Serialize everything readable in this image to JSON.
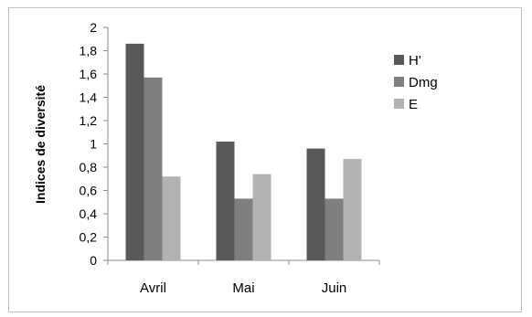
{
  "chart_data": {
    "type": "bar",
    "title": "",
    "xlabel": "",
    "ylabel": "Indices de diversité",
    "ylim": [
      0,
      2
    ],
    "ytick_step": 0.2,
    "yticks": [
      "0",
      "0,2",
      "0,4",
      "0,6",
      "0,8",
      "1",
      "1,2",
      "1,4",
      "1,6",
      "1,8",
      "2"
    ],
    "grid": false,
    "legend_position": "right",
    "categories": [
      "Avril",
      "Mai",
      "Juin"
    ],
    "series": [
      {
        "name": "H'",
        "color": "#595959",
        "values": [
          1.86,
          1.02,
          0.96
        ]
      },
      {
        "name": "Dmg",
        "color": "#7f7f7f",
        "values": [
          1.57,
          0.53,
          0.53
        ]
      },
      {
        "name": "E",
        "color": "#b2b2b2",
        "values": [
          0.72,
          0.74,
          0.87
        ]
      }
    ]
  }
}
